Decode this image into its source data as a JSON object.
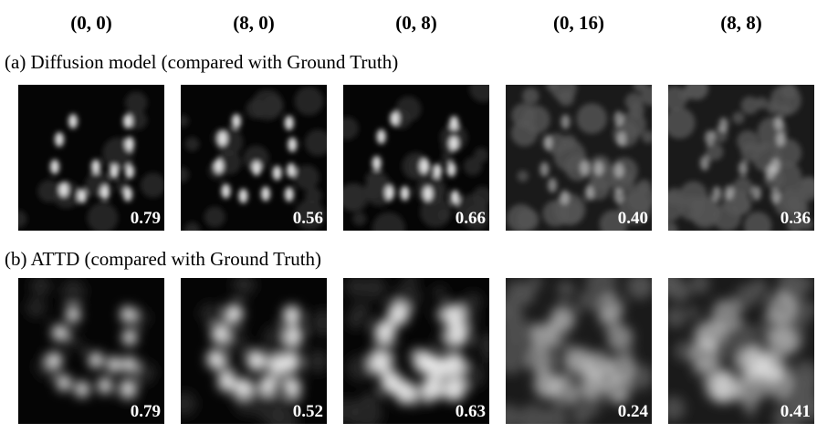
{
  "columns": [
    "(0, 0)",
    "(8, 0)",
    "(0, 8)",
    "(0, 16)",
    "(8, 8)"
  ],
  "rows": [
    {
      "label": "(a) Diffusion model (compared with Ground Truth)",
      "scores": [
        "0.79",
        "0.56",
        "0.66",
        "0.40",
        "0.36"
      ]
    },
    {
      "label": "(b) ATTD  (compared with Ground Truth)",
      "scores": [
        "0.79",
        "0.52",
        "0.63",
        "0.24",
        "0.41"
      ]
    }
  ]
}
